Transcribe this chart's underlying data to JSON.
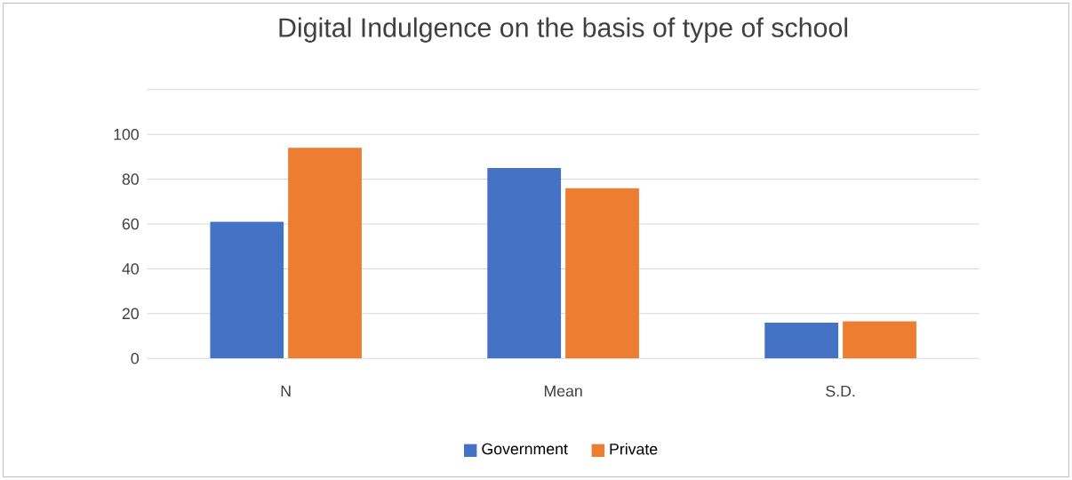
{
  "chart_data": {
    "type": "bar",
    "title": "Digital Indulgence on the basis of type of school",
    "categories": [
      "N",
      "Mean",
      "S.D."
    ],
    "series": [
      {
        "name": "Government",
        "color": "#4472c4",
        "values": [
          61,
          85,
          16
        ]
      },
      {
        "name": "Private",
        "color": "#ed7d31",
        "values": [
          94,
          76,
          16.5
        ]
      }
    ],
    "ylim": [
      0,
      120
    ],
    "yticks": [
      0,
      20,
      40,
      60,
      80,
      100,
      {
        "value": 120,
        "label": null
      }
    ],
    "grid": "y",
    "legend": "bottom"
  }
}
